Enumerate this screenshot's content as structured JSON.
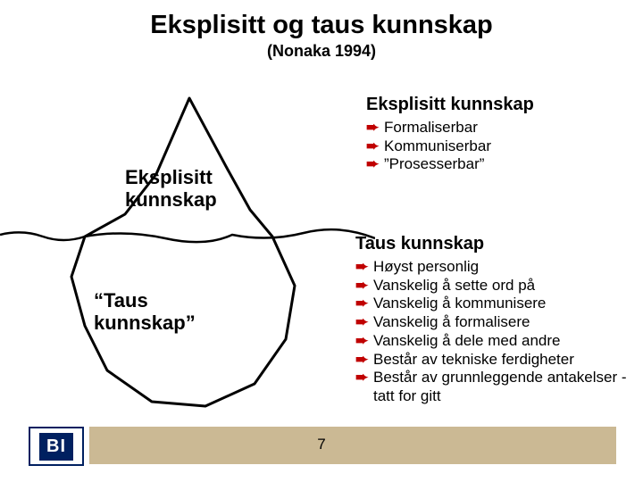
{
  "title": "Eksplisitt og taus kunnskap",
  "subtitle": "(Nonaka 1994)",
  "iceberg": {
    "top_label": "Eksplisitt\nkunnskap",
    "bottom_label": "“Taus\nkunnskap”",
    "outline_color": "#000000",
    "waterline_color": "#000000",
    "outline_width": 3
  },
  "section_eksplisitt": {
    "header": "Eksplisitt kunnskap",
    "bullets": [
      "Formaliserbar",
      "Kommuniserbar",
      "”Prosesserbar”"
    ]
  },
  "section_taus": {
    "header": "Taus kunnskap",
    "bullets": [
      "Høyst personlig",
      "Vanskelig å sette ord på",
      "Vanskelig å kommunisere",
      "Vanskelig å formalisere",
      "Vanskelig å dele med andre",
      "Består av tekniske ferdigheter",
      "Består av grunnleggende antakelser - tatt for gitt"
    ]
  },
  "bullet_arrow_color": "#c00000",
  "bullet_arrow_glyph": "➨",
  "footer": {
    "bar_color": "#cbb994",
    "page_number": "7",
    "logo_text": "BI",
    "logo_border": "#002060",
    "logo_bg": "#002060",
    "logo_fg": "#ffffff"
  }
}
